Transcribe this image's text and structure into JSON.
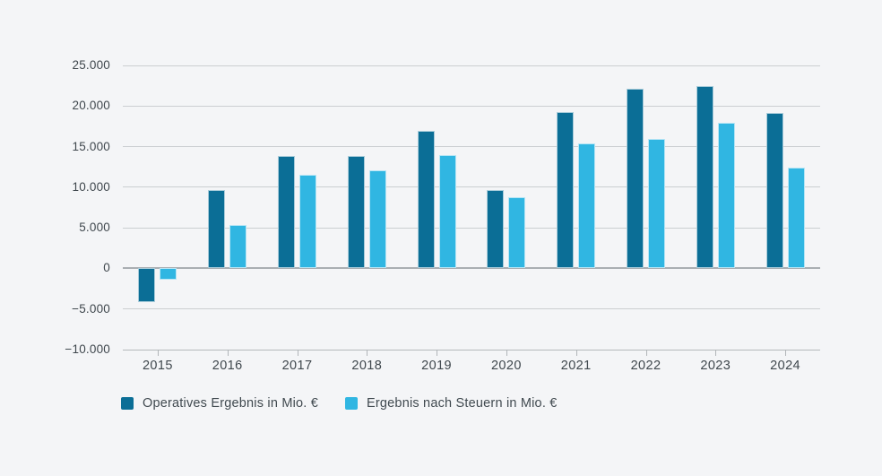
{
  "chart_data": {
    "type": "bar",
    "title": "",
    "xlabel": "",
    "ylabel": "",
    "grid": true,
    "legend_position": "bottom-left",
    "background_color": "#f4f5f7",
    "categories": [
      "2015",
      "2016",
      "2017",
      "2018",
      "2019",
      "2020",
      "2021",
      "2022",
      "2023",
      "2024"
    ],
    "series": [
      {
        "name": "Operatives Ergebnis in Mio. €",
        "slug": "operatives-ergebnis",
        "color": "#0B6E96",
        "values": [
          -4100,
          9600,
          13800,
          13900,
          16900,
          9700,
          19300,
          22100,
          22500,
          19100
        ]
      },
      {
        "name": "Ergebnis nach Steuern in Mio. €",
        "slug": "ergebnis-nach-steuern",
        "color": "#30B6E2",
        "values": [
          -1400,
          5400,
          11500,
          12100,
          14000,
          8800,
          15400,
          15900,
          17900,
          12400
        ]
      }
    ],
    "ylim": [
      -10000,
      25000
    ],
    "ytick_step": 5000,
    "yticks": [
      {
        "value": 25000,
        "label": "25.000"
      },
      {
        "value": 20000,
        "label": "20.000"
      },
      {
        "value": 15000,
        "label": "15.000"
      },
      {
        "value": 10000,
        "label": "10.000"
      },
      {
        "value": 5000,
        "label": "5.000"
      },
      {
        "value": 0,
        "label": "0"
      },
      {
        "value": -5000,
        "label": "−5.000"
      },
      {
        "value": -10000,
        "label": "−10.000"
      }
    ]
  }
}
